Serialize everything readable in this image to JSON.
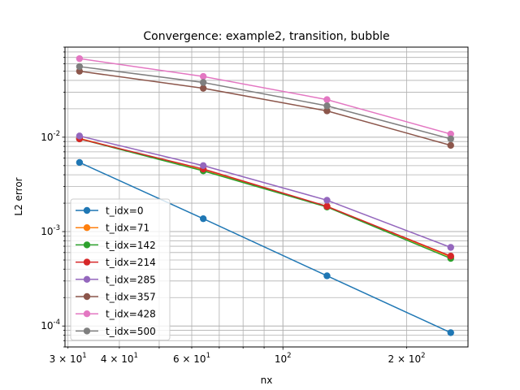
{
  "chart_data": {
    "type": "line",
    "title": "Convergence: example2, transition, bubble",
    "xlabel": "nx",
    "ylabel": "L2 error",
    "xscale": "log",
    "yscale": "log",
    "xlim": [
      29.5,
      282
    ],
    "ylim": [
      6e-05,
      0.09
    ],
    "grid": "both-major-and-minor",
    "legend_position": "lower-left",
    "x_tick_labels": [
      {
        "value": 30,
        "label": "3 × 10^1"
      },
      {
        "value": 40,
        "label": "4 × 10^1"
      },
      {
        "value": 60,
        "label": "6 × 10^1"
      },
      {
        "value": 100,
        "label": "10^2"
      },
      {
        "value": 200,
        "label": "2 × 10^2"
      }
    ],
    "y_tick_labels": [
      {
        "value": 0.0001,
        "label": "10^-4"
      },
      {
        "value": 0.001,
        "label": "10^-3"
      },
      {
        "value": 0.01,
        "label": "10^-2"
      }
    ],
    "x": [
      32,
      64,
      128,
      256
    ],
    "series": [
      {
        "name": "t_idx=0",
        "color": "#1f77b4",
        "values": [
          0.0054,
          0.00137,
          0.00034,
          8.5e-05
        ]
      },
      {
        "name": "t_idx=71",
        "color": "#ff7f0e",
        "values": [
          0.0097,
          0.00445,
          0.00185,
          0.00054
        ]
      },
      {
        "name": "t_idx=142",
        "color": "#2ca02c",
        "values": [
          0.0096,
          0.0044,
          0.00182,
          0.00052
        ]
      },
      {
        "name": "t_idx=214",
        "color": "#d62728",
        "values": [
          0.0096,
          0.0046,
          0.00185,
          0.00055
        ]
      },
      {
        "name": "t_idx=285",
        "color": "#9467bd",
        "values": [
          0.0103,
          0.005,
          0.00215,
          0.00068
        ]
      },
      {
        "name": "t_idx=357",
        "color": "#8c564b",
        "values": [
          0.05,
          0.033,
          0.019,
          0.0082
        ]
      },
      {
        "name": "t_idx=428",
        "color": "#e377c2",
        "values": [
          0.068,
          0.044,
          0.025,
          0.0108
        ]
      },
      {
        "name": "t_idx=500",
        "color": "#7f7f7f",
        "values": [
          0.056,
          0.038,
          0.0215,
          0.0096
        ]
      }
    ]
  }
}
